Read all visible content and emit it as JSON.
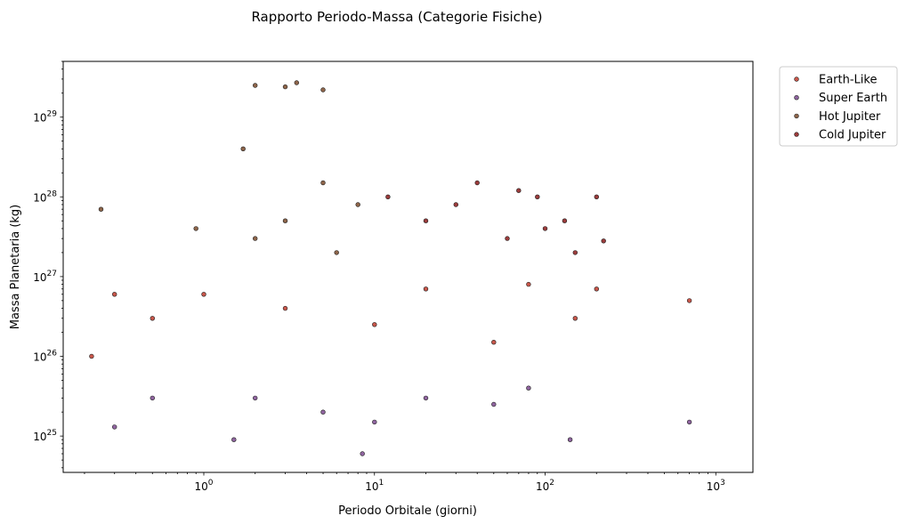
{
  "chart_data": {
    "type": "scatter",
    "title": "Rapporto Periodo-Massa (Categorie Fisiche)",
    "xlabel": "Periodo Orbitale (giorni)",
    "ylabel": "Massa Planetaria (kg)",
    "xscale": "log",
    "yscale": "log",
    "xlim": [
      0.15,
      1650
    ],
    "ylim": [
      3.5e+24,
      5e+29
    ],
    "x_ticks": [
      {
        "value": 1,
        "base": "10",
        "exp": "0"
      },
      {
        "value": 10,
        "base": "10",
        "exp": "1"
      },
      {
        "value": 100,
        "base": "10",
        "exp": "2"
      },
      {
        "value": 1000,
        "base": "10",
        "exp": "3"
      }
    ],
    "y_ticks": [
      {
        "value": 1e+25,
        "base": "10",
        "exp": "25"
      },
      {
        "value": 1e+26,
        "base": "10",
        "exp": "26"
      },
      {
        "value": 1e+27,
        "base": "10",
        "exp": "27"
      },
      {
        "value": 1e+28,
        "base": "10",
        "exp": "28"
      },
      {
        "value": 1e+29,
        "base": "10",
        "exp": "29"
      }
    ],
    "grid": false,
    "legend_position": "outside-top-right",
    "series": [
      {
        "name": "Earth-Like",
        "color": "#c0392b",
        "points": [
          [
            1.0,
            6e+26
          ],
          [
            3,
            4e+26
          ],
          [
            10,
            2.5e+26
          ],
          [
            20,
            7e+26
          ],
          [
            50,
            1.5e+26
          ],
          [
            80,
            8e+26
          ],
          [
            0.5,
            3e+26
          ],
          [
            0.3,
            6e+26
          ],
          [
            150,
            3e+26
          ],
          [
            700,
            5e+26
          ],
          [
            0.22,
            1e+26
          ],
          [
            200,
            7e+26
          ]
        ]
      },
      {
        "name": "Super Earth",
        "color": "#7d4a8f",
        "points": [
          [
            2,
            3e+25
          ],
          [
            5,
            2e+25
          ],
          [
            10,
            1.5e+25
          ],
          [
            20,
            3e+25
          ],
          [
            50,
            2.5e+25
          ],
          [
            80,
            4e+25
          ],
          [
            0.3,
            1.3e+25
          ],
          [
            8.5,
            6e+24
          ],
          [
            140,
            9e+24
          ],
          [
            700,
            1.5e+25
          ],
          [
            1.5,
            9e+24
          ],
          [
            0.5,
            3e+25
          ]
        ]
      },
      {
        "name": "Hot Jupiter",
        "color": "#7a4a2a",
        "points": [
          [
            3,
            5e+27
          ],
          [
            5,
            1.5e+28
          ],
          [
            6,
            2e+27
          ],
          [
            8,
            8e+27
          ],
          [
            2,
            3e+27
          ],
          [
            0.9,
            4e+27
          ],
          [
            1.7,
            4e+28
          ],
          [
            3,
            2.4e+29
          ],
          [
            3.5,
            2.7e+29
          ],
          [
            5,
            2.2e+29
          ],
          [
            2,
            2.5e+29
          ],
          [
            0.25,
            7e+27
          ]
        ]
      },
      {
        "name": "Cold Jupiter",
        "color": "#8b1a1a",
        "points": [
          [
            12,
            1e+28
          ],
          [
            20,
            5e+27
          ],
          [
            40,
            1.5e+28
          ],
          [
            60,
            3e+27
          ],
          [
            90,
            1e+28
          ],
          [
            130,
            5e+27
          ],
          [
            200,
            1e+28
          ],
          [
            150,
            2e+27
          ],
          [
            220,
            2.8e+27
          ],
          [
            100,
            4e+27
          ],
          [
            30,
            8e+27
          ],
          [
            70,
            1.2e+28
          ]
        ]
      }
    ]
  }
}
